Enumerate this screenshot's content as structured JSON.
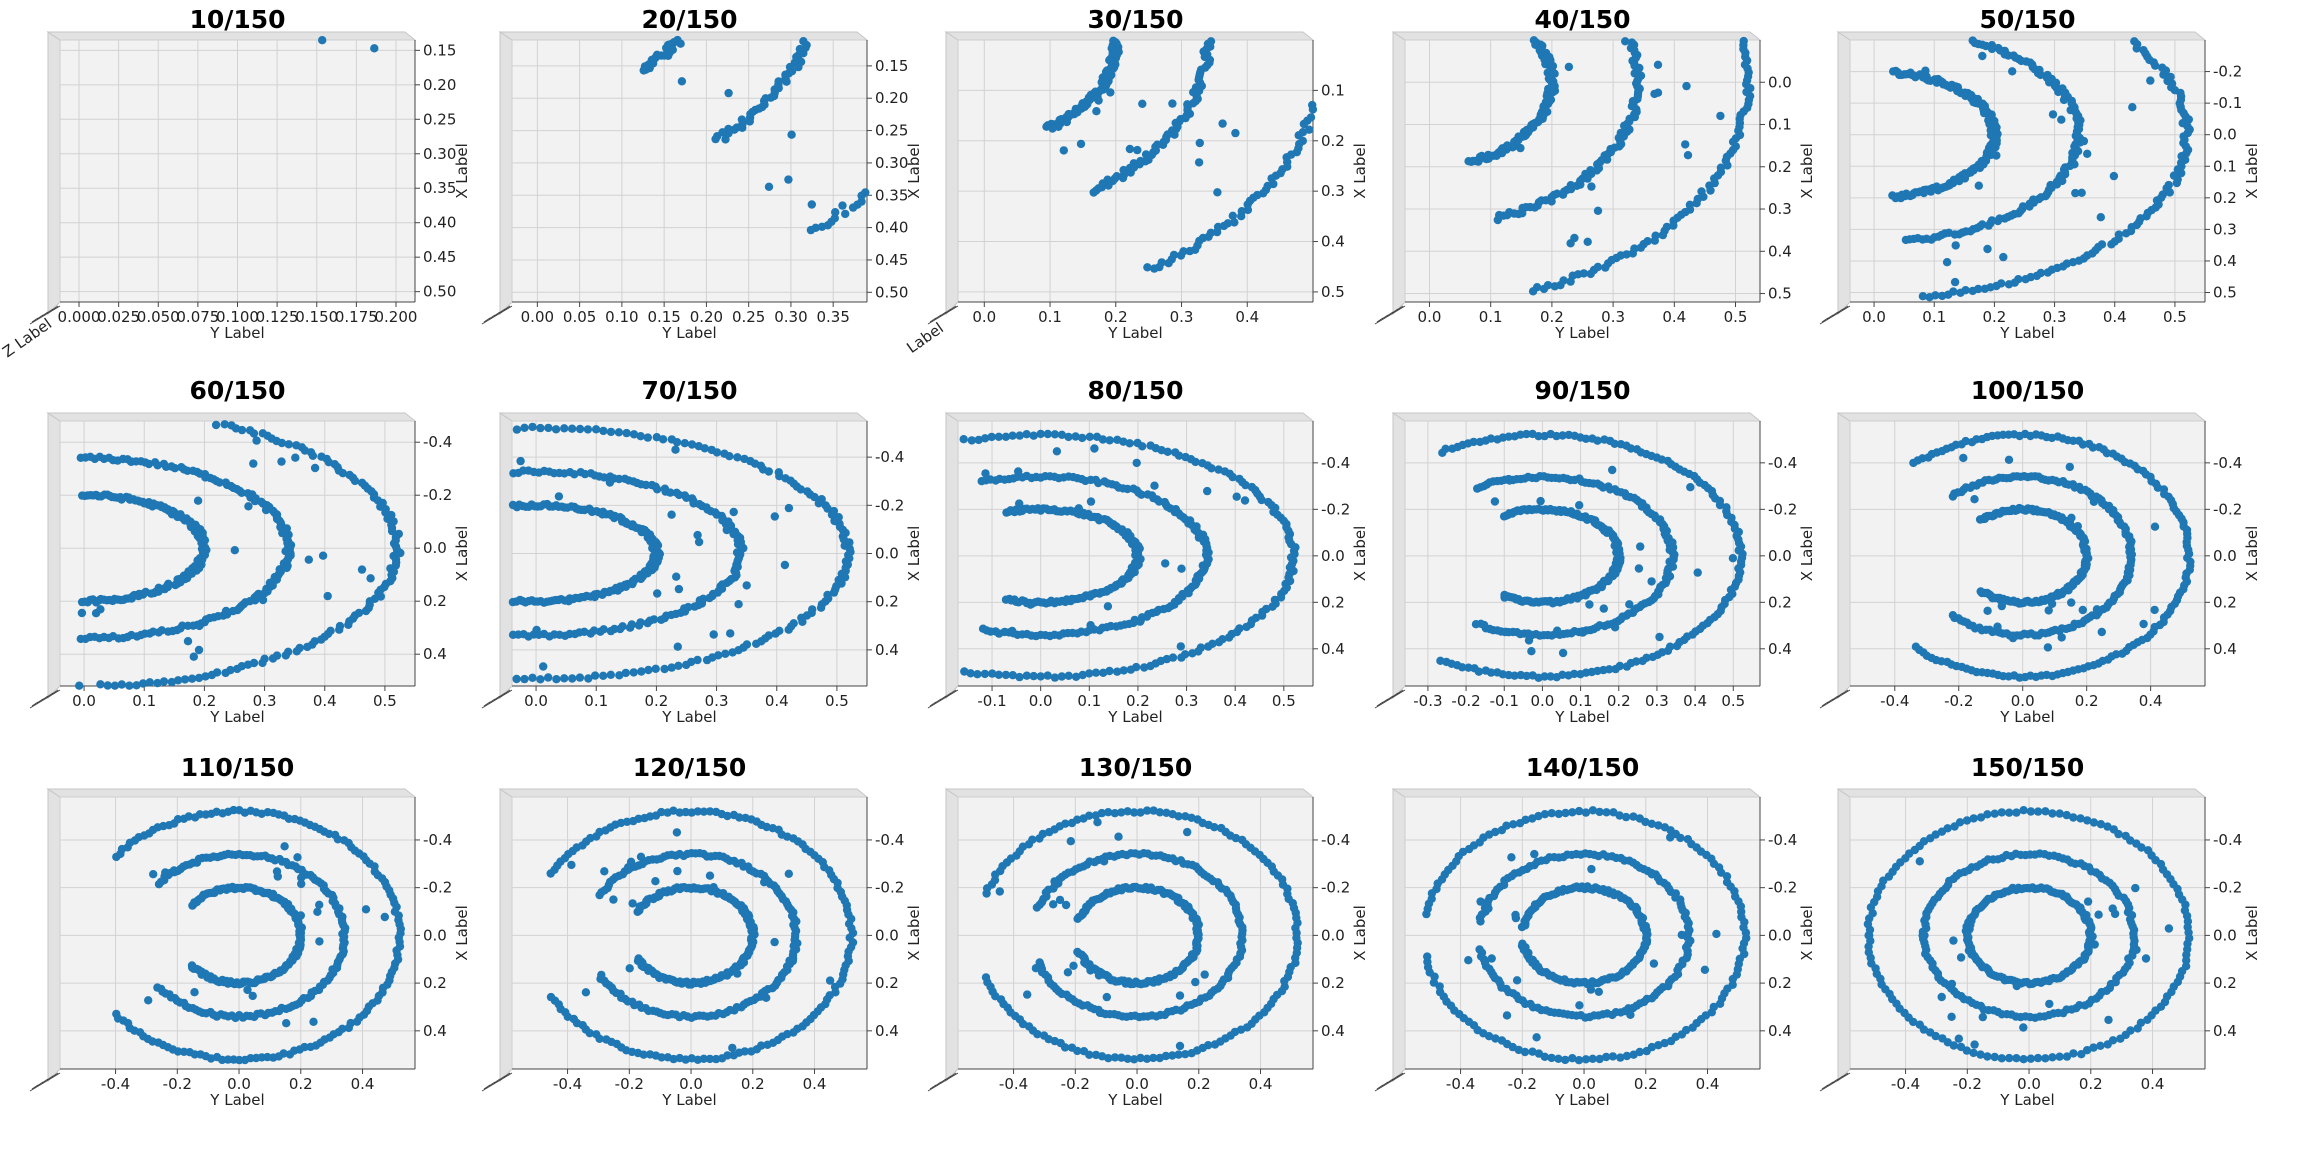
{
  "chart_data": [
    {
      "type": "scatter",
      "title": "10/150",
      "xlabel": "Y Label",
      "ylabel": "X Label",
      "zlabel": "Z Label",
      "x_ticks": [
        "0.000",
        "0.025",
        "0.050",
        "0.075",
        "0.100",
        "0.125",
        "0.150",
        "0.175",
        "0.200"
      ],
      "y_ticks": [
        "0.15",
        "0.20",
        "0.25",
        "0.30",
        "0.35",
        "0.40",
        "0.45",
        "0.50"
      ],
      "xlim": [
        -0.012,
        0.212
      ],
      "ylim": [
        0.135,
        0.515
      ],
      "t": 0.0667
    },
    {
      "type": "scatter",
      "title": "20/150",
      "xlabel": "Y Label",
      "ylabel": "X Label",
      "x_ticks": [
        "0.00",
        "0.05",
        "0.10",
        "0.15",
        "0.20",
        "0.25",
        "0.30",
        "0.35"
      ],
      "y_ticks": [
        "0.15",
        "0.20",
        "0.25",
        "0.30",
        "0.35",
        "0.40",
        "0.45",
        "0.50"
      ],
      "xlim": [
        -0.03,
        0.39
      ],
      "ylim": [
        0.11,
        0.515
      ],
      "t": 0.1333
    },
    {
      "type": "scatter",
      "title": "30/150",
      "xlabel": "Y Label",
      "ylabel": "X Label",
      "zlabel": "Label",
      "x_ticks": [
        "0.0",
        "0.1",
        "0.2",
        "0.3",
        "0.4"
      ],
      "y_ticks": [
        "0.1",
        "0.2",
        "0.3",
        "0.4",
        "0.5"
      ],
      "xlim": [
        -0.04,
        0.5
      ],
      "ylim": [
        0.0,
        0.52
      ],
      "t": 0.2
    },
    {
      "type": "scatter",
      "title": "40/150",
      "xlabel": "Y Label",
      "ylabel": "X Label",
      "x_ticks": [
        "0.0",
        "0.1",
        "0.2",
        "0.3",
        "0.4",
        "0.5"
      ],
      "y_ticks": [
        "0.0",
        "0.1",
        "0.2",
        "0.3",
        "0.4",
        "0.5"
      ],
      "xlim": [
        -0.04,
        0.54
      ],
      "ylim": [
        -0.1,
        0.52
      ],
      "t": 0.2667
    },
    {
      "type": "scatter",
      "title": "50/150",
      "xlabel": "Y Label",
      "ylabel": "X Label",
      "x_ticks": [
        "0.0",
        "0.1",
        "0.2",
        "0.3",
        "0.4",
        "0.5"
      ],
      "y_ticks": [
        "-0.2",
        "-0.1",
        "0.0",
        "0.1",
        "0.2",
        "0.3",
        "0.4",
        "0.5"
      ],
      "xlim": [
        -0.04,
        0.55
      ],
      "ylim": [
        -0.3,
        0.53
      ],
      "t": 0.3333
    },
    {
      "type": "scatter",
      "title": "60/150",
      "xlabel": "Y Label",
      "ylabel": "X Label",
      "x_ticks": [
        "0.0",
        "0.1",
        "0.2",
        "0.3",
        "0.4",
        "0.5"
      ],
      "y_ticks": [
        "-0.4",
        "-0.2",
        "0.0",
        "0.2",
        "0.4"
      ],
      "xlim": [
        -0.04,
        0.55
      ],
      "ylim": [
        -0.48,
        0.52
      ],
      "t": 0.4
    },
    {
      "type": "scatter",
      "title": "70/150",
      "xlabel": "Y Label",
      "ylabel": "X Label",
      "x_ticks": [
        "0.0",
        "0.1",
        "0.2",
        "0.3",
        "0.4",
        "0.5"
      ],
      "y_ticks": [
        "-0.4",
        "-0.2",
        "0.0",
        "0.2",
        "0.4"
      ],
      "xlim": [
        -0.04,
        0.55
      ],
      "ylim": [
        -0.55,
        0.55
      ],
      "t": 0.4667
    },
    {
      "type": "scatter",
      "title": "80/150",
      "xlabel": "Y Label",
      "ylabel": "X Label",
      "x_ticks": [
        "-0.1",
        "0.0",
        "0.1",
        "0.2",
        "0.3",
        "0.4",
        "0.5"
      ],
      "y_ticks": [
        "-0.4",
        "-0.2",
        "0.0",
        "0.2",
        "0.4"
      ],
      "xlim": [
        -0.17,
        0.56
      ],
      "ylim": [
        -0.58,
        0.56
      ],
      "t": 0.5333
    },
    {
      "type": "scatter",
      "title": "90/150",
      "xlabel": "Y Label",
      "ylabel": "X Label",
      "x_ticks": [
        "-0.3",
        "-0.2",
        "-0.1",
        "0.0",
        "0.1",
        "0.2",
        "0.3",
        "0.4",
        "0.5"
      ],
      "y_ticks": [
        "-0.4",
        "-0.2",
        "0.0",
        "0.2",
        "0.4"
      ],
      "xlim": [
        -0.36,
        0.57
      ],
      "ylim": [
        -0.58,
        0.56
      ],
      "t": 0.6
    },
    {
      "type": "scatter",
      "title": "100/150",
      "xlabel": "Y Label",
      "ylabel": "X Label",
      "x_ticks": [
        "-0.4",
        "-0.2",
        "0.0",
        "0.2",
        "0.4"
      ],
      "y_ticks": [
        "-0.4",
        "-0.2",
        "0.0",
        "0.2",
        "0.4"
      ],
      "xlim": [
        -0.54,
        0.57
      ],
      "ylim": [
        -0.58,
        0.56
      ],
      "t": 0.6667
    },
    {
      "type": "scatter",
      "title": "110/150",
      "xlabel": "Y Label",
      "ylabel": "X Label",
      "x_ticks": [
        "-0.4",
        "-0.2",
        "0.0",
        "0.2",
        "0.4"
      ],
      "y_ticks": [
        "-0.4",
        "-0.2",
        "0.0",
        "0.2",
        "0.4"
      ],
      "xlim": [
        -0.58,
        0.57
      ],
      "ylim": [
        -0.58,
        0.56
      ],
      "t": 0.7333
    },
    {
      "type": "scatter",
      "title": "120/150",
      "xlabel": "Y Label",
      "ylabel": "X Label",
      "x_ticks": [
        "-0.4",
        "-0.2",
        "0.0",
        "0.2",
        "0.4"
      ],
      "y_ticks": [
        "-0.4",
        "-0.2",
        "0.0",
        "0.2",
        "0.4"
      ],
      "xlim": [
        -0.58,
        0.57
      ],
      "ylim": [
        -0.58,
        0.56
      ],
      "t": 0.8
    },
    {
      "type": "scatter",
      "title": "130/150",
      "xlabel": "Y Label",
      "ylabel": "X Label",
      "x_ticks": [
        "-0.4",
        "-0.2",
        "0.0",
        "0.2",
        "0.4"
      ],
      "y_ticks": [
        "-0.4",
        "-0.2",
        "0.0",
        "0.2",
        "0.4"
      ],
      "xlim": [
        -0.58,
        0.57
      ],
      "ylim": [
        -0.58,
        0.56
      ],
      "t": 0.8667
    },
    {
      "type": "scatter",
      "title": "140/150",
      "xlabel": "Y Label",
      "ylabel": "X Label",
      "x_ticks": [
        "-0.4",
        "-0.2",
        "0.0",
        "0.2",
        "0.4"
      ],
      "y_ticks": [
        "-0.4",
        "-0.2",
        "0.0",
        "0.2",
        "0.4"
      ],
      "xlim": [
        -0.58,
        0.57
      ],
      "ylim": [
        -0.58,
        0.56
      ],
      "t": 0.9333
    },
    {
      "type": "scatter",
      "title": "150/150",
      "xlabel": "Y Label",
      "ylabel": "X Label",
      "x_ticks": [
        "-0.4",
        "-0.2",
        "0.0",
        "0.2",
        "0.4"
      ],
      "y_ticks": [
        "-0.4",
        "-0.2",
        "0.0",
        "0.2",
        "0.4"
      ],
      "xlim": [
        -0.58,
        0.57
      ],
      "ylim": [
        -0.58,
        0.56
      ],
      "t": 1.0
    }
  ],
  "colors": {
    "points": "#1f77b4",
    "pane": "#f2f2f2",
    "grid": "#d2d2d2"
  }
}
